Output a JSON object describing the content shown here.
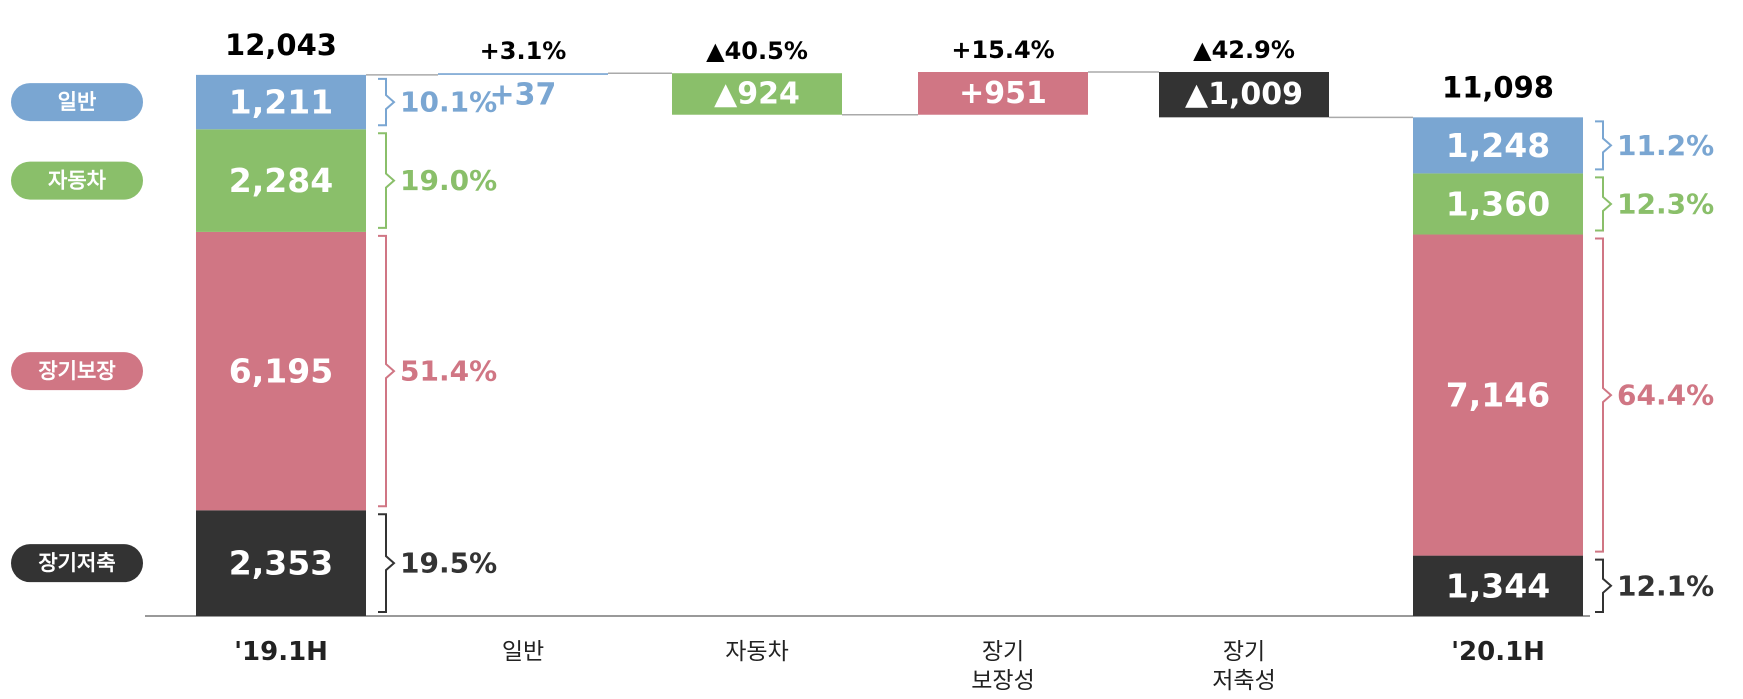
{
  "chart_data": {
    "type": "waterfall",
    "categories": [
      "'19.1H",
      "일반",
      "자동차",
      "장기\n보장성",
      "장기\n저축성",
      "'20.1H"
    ],
    "totals": [
      12043,
      null,
      null,
      null,
      null,
      11098
    ],
    "total_labels": [
      "12,043",
      null,
      null,
      null,
      null,
      "11,098"
    ],
    "series": [
      {
        "name": "일반",
        "color": "#7aa6d2",
        "values": [
          1211,
          37,
          null,
          null,
          null,
          1248
        ],
        "value_labels": [
          "1,211",
          "+37",
          null,
          null,
          null,
          "1,248"
        ],
        "change_pct": [
          null,
          3.1,
          null,
          null,
          null,
          null
        ],
        "change_pct_labels": [
          null,
          "+3.1%",
          null,
          null,
          null,
          null
        ],
        "shares": [
          10.1,
          null,
          null,
          null,
          null,
          11.2
        ],
        "share_labels": [
          "10.1%",
          null,
          null,
          null,
          null,
          "11.2%"
        ]
      },
      {
        "name": "자동차",
        "color": "#8abf6a",
        "values": [
          2284,
          null,
          -924,
          null,
          null,
          1360
        ],
        "value_labels": [
          "2,284",
          null,
          "▲924",
          null,
          null,
          "1,360"
        ],
        "change_pct": [
          null,
          null,
          -40.5,
          null,
          null,
          null
        ],
        "change_pct_labels": [
          null,
          null,
          "▲40.5%",
          null,
          null,
          null
        ],
        "shares": [
          19.0,
          null,
          null,
          null,
          null,
          12.3
        ],
        "share_labels": [
          "19.0%",
          null,
          null,
          null,
          null,
          "12.3%"
        ]
      },
      {
        "name": "장기보장",
        "color": "#d07684",
        "values": [
          6195,
          null,
          null,
          951,
          null,
          7146
        ],
        "value_labels": [
          "6,195",
          null,
          null,
          "+951",
          null,
          "7,146"
        ],
        "change_pct": [
          null,
          null,
          null,
          15.4,
          null,
          null
        ],
        "change_pct_labels": [
          null,
          null,
          null,
          "+15.4%",
          null,
          null
        ],
        "shares": [
          51.4,
          null,
          null,
          null,
          null,
          64.4
        ],
        "share_labels": [
          "51.4%",
          null,
          null,
          null,
          null,
          "64.4%"
        ]
      },
      {
        "name": "장기저축",
        "color": "#333333",
        "values": [
          2353,
          null,
          null,
          null,
          -1009,
          1344
        ],
        "value_labels": [
          "2,353",
          null,
          null,
          null,
          "▲1,009",
          "1,344"
        ],
        "change_pct": [
          null,
          null,
          null,
          null,
          -42.9,
          null
        ],
        "change_pct_labels": [
          null,
          null,
          null,
          null,
          "▲42.9%",
          null
        ],
        "shares": [
          19.5,
          null,
          null,
          null,
          null,
          12.1
        ],
        "share_labels": [
          "19.5%",
          null,
          null,
          null,
          null,
          "12.1%"
        ]
      }
    ]
  }
}
